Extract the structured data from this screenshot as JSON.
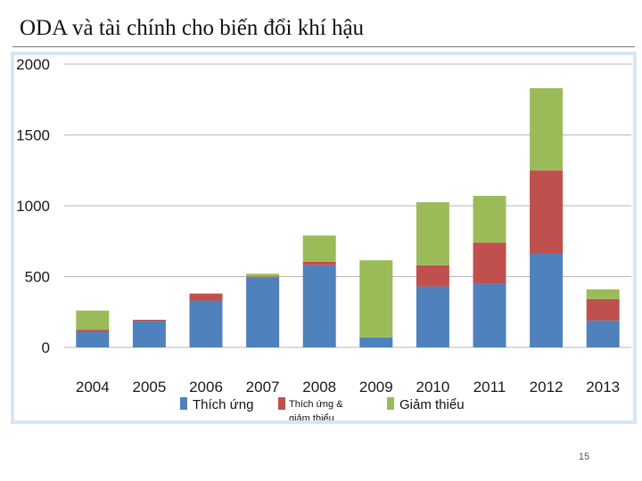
{
  "slide": {
    "title": "ODA và tài chính cho biến đổi khí hậu",
    "page_number": "15"
  },
  "colors": {
    "adaptation": "#4f81bd",
    "both": "#c0504d",
    "mitigation": "#9bbb59",
    "grid": "#b8b8b8"
  },
  "chart_data": {
    "type": "bar",
    "stacked": true,
    "title": "",
    "xlabel": "",
    "ylabel": "",
    "ylim": [
      0,
      2000
    ],
    "yticks": [
      "2000",
      "1500",
      "1000",
      "500",
      "0"
    ],
    "grid": true,
    "legend_position": "bottom",
    "categories": [
      "2004",
      "2005",
      "2006",
      "2007",
      "2008",
      "2009",
      "2010",
      "2011",
      "2012",
      "2013"
    ],
    "series": [
      {
        "name": "Thích ứng",
        "color_key": "adaptation",
        "values": [
          110,
          185,
          330,
          495,
          580,
          70,
          430,
          450,
          660,
          190
        ]
      },
      {
        "name": "Thích ứng & giảm thiểu",
        "color_key": "both",
        "values": [
          15,
          10,
          50,
          5,
          25,
          0,
          150,
          290,
          590,
          150
        ]
      },
      {
        "name": "Giảm thiểu",
        "color_key": "mitigation",
        "values": [
          135,
          0,
          0,
          20,
          185,
          545,
          445,
          330,
          580,
          70
        ]
      }
    ]
  }
}
